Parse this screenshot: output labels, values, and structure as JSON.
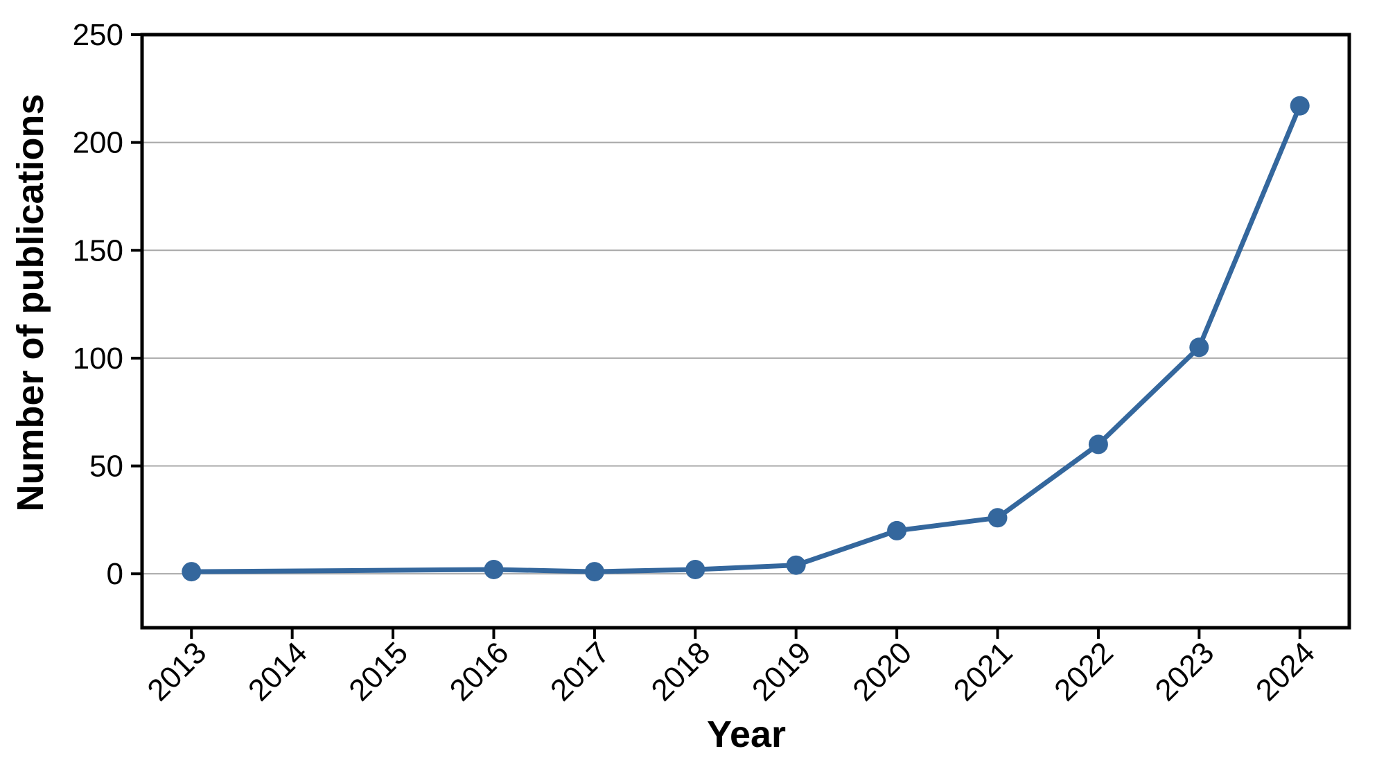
{
  "figure": {
    "background_color": "#ffffff",
    "frame_color": "#000000",
    "grid_color": "#a8a8a8"
  },
  "chart_data": {
    "type": "line",
    "title": "",
    "xlabel": "Year",
    "ylabel": "Number of publications",
    "series": [
      {
        "name": "publications-per-year",
        "color": "#34679D",
        "marker": "circle",
        "marker_radius": 14,
        "line_width": 7,
        "points": [
          {
            "x": 2013,
            "y": 1
          },
          {
            "x": 2016,
            "y": 2
          },
          {
            "x": 2017,
            "y": 1
          },
          {
            "x": 2018,
            "y": 2
          },
          {
            "x": 2019,
            "y": 4
          },
          {
            "x": 2020,
            "y": 20
          },
          {
            "x": 2021,
            "y": 26
          },
          {
            "x": 2022,
            "y": 60
          },
          {
            "x": 2023,
            "y": 105
          },
          {
            "x": 2024,
            "y": 217
          }
        ]
      }
    ],
    "x_ticks": [
      2013,
      2014,
      2015,
      2016,
      2017,
      2018,
      2019,
      2020,
      2021,
      2022,
      2023,
      2024
    ],
    "y_ticks": [
      0,
      50,
      100,
      150,
      200,
      250
    ],
    "xlim": [
      2012.51,
      2024.49
    ],
    "ylim": [
      -25,
      250
    ],
    "grid": "horizontal",
    "x_tick_label_rotation": 45,
    "legend": "none"
  }
}
